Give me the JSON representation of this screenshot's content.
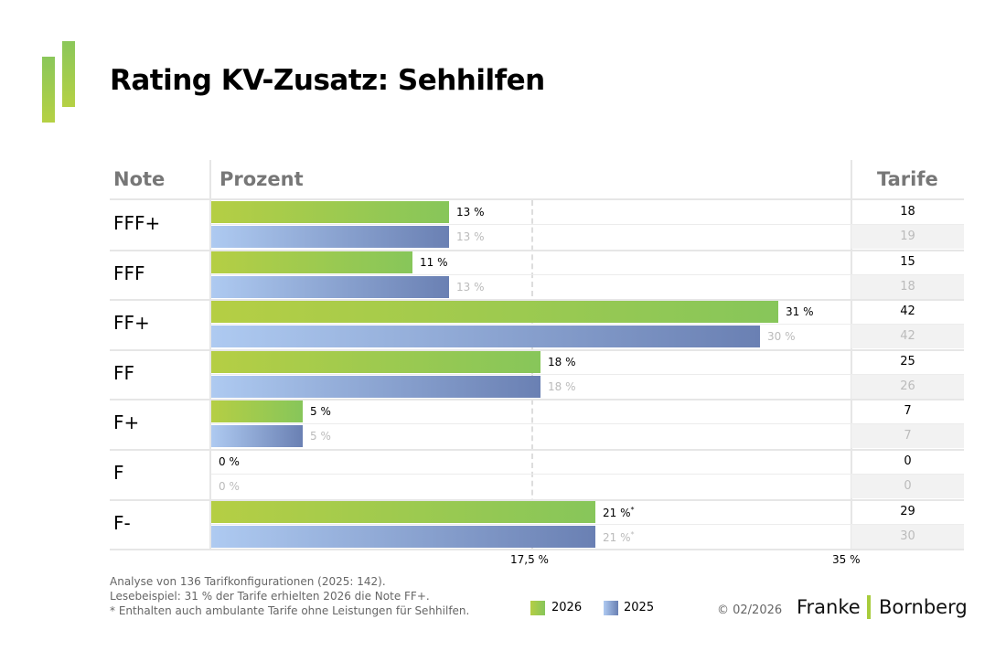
{
  "title": "Rating KV-Zusatz: Sehhilfen",
  "headers": {
    "note": "Note",
    "percent": "Prozent",
    "tarife": "Tarife"
  },
  "chart_data": {
    "type": "bar",
    "orientation": "horizontal",
    "title": "Rating KV-Zusatz: Sehhilfen",
    "categories": [
      "FFF+",
      "FFF",
      "FF+",
      "FF",
      "F+",
      "F",
      "F-"
    ],
    "series": [
      {
        "name": "2026",
        "values": [
          13,
          11,
          31,
          18,
          5,
          0,
          21
        ],
        "labels": [
          "13 %",
          "11 %",
          "31 %",
          "18 %",
          "5 %",
          "0 %",
          "21 %*"
        ],
        "tarife": [
          "18",
          "15",
          "42",
          "25",
          "7",
          "0",
          "29"
        ],
        "color": "#8bc75a"
      },
      {
        "name": "2025",
        "values": [
          13,
          13,
          30,
          18,
          5,
          0,
          21
        ],
        "labels": [
          "13 %",
          "13 %",
          "30 %",
          "18 %",
          "5 %",
          "0 %",
          "21 %*"
        ],
        "tarife": [
          "19",
          "18",
          "42",
          "26",
          "7",
          "0",
          "30"
        ],
        "color": "#6a80b3"
      }
    ],
    "xlim": [
      0,
      35
    ],
    "ticks": [
      "17,5 %",
      "35 %"
    ],
    "legend": "bottom"
  },
  "footnotes": [
    "Analyse von 136 Tarifkonfigurationen (2025: 142).",
    "Lesebeispiel: 31 % der Tarife erhielten 2026 die Note FF+.",
    "* Enthalten auch ambulante Tarife ohne Leistungen für Sehhilfen."
  ],
  "copyright": "© 02/2026",
  "brand": {
    "left": "Franke",
    "right": "Bornberg"
  }
}
